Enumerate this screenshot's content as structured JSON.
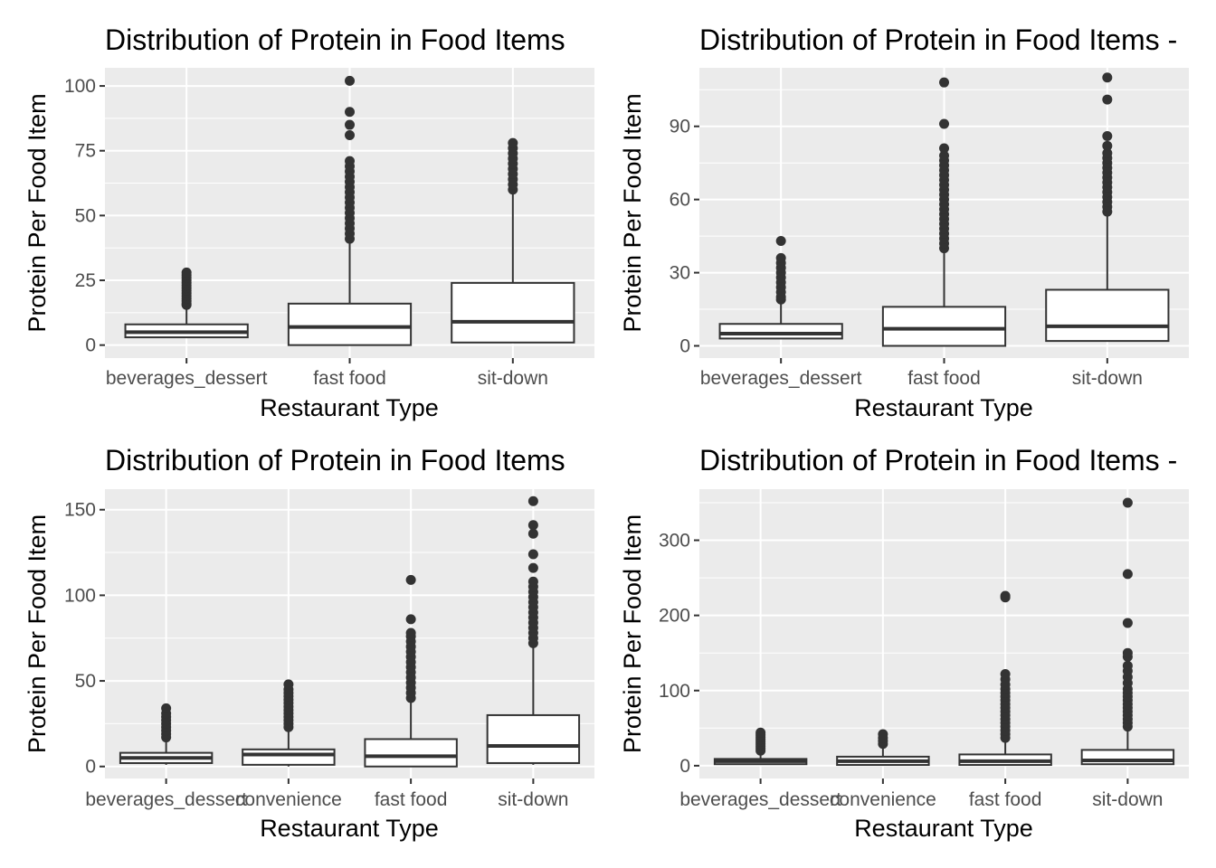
{
  "chart_data": [
    {
      "type": "box",
      "title": "Distribution of Protein in Food Items",
      "xlabel": "Restaurant Type",
      "ylabel": "Protein Per Food Item",
      "ylim": [
        -5,
        107
      ],
      "yticks": [
        0,
        25,
        50,
        75,
        100
      ],
      "categories": [
        "beverages_dessert",
        "fast food",
        "sit-down"
      ],
      "boxes": [
        {
          "min": 3,
          "q1": 3,
          "median": 5,
          "q3": 8,
          "max": 15,
          "outliers": [
            15.5,
            16,
            17,
            18,
            19,
            20,
            21,
            22,
            23,
            24,
            25,
            26,
            27,
            28
          ]
        },
        {
          "min": 0,
          "q1": 0,
          "median": 7,
          "q3": 16,
          "max": 40,
          "outliers": [
            41,
            43,
            45,
            47,
            49,
            51,
            53,
            55,
            57,
            59,
            61,
            63,
            65,
            67,
            69,
            71,
            81,
            85,
            90,
            102
          ]
        },
        {
          "min": 1,
          "q1": 1,
          "median": 9,
          "q3": 24,
          "max": 59,
          "outliers": [
            60,
            62,
            64,
            66,
            68,
            70,
            72,
            74,
            76,
            78
          ]
        }
      ]
    },
    {
      "type": "box",
      "title": "Distribution of Protein in Food Items -",
      "xlabel": "Restaurant Type",
      "ylabel": "Protein Per Food Item",
      "ylim": [
        -5,
        114
      ],
      "yticks": [
        0,
        30,
        60,
        90
      ],
      "categories": [
        "beverages_dessert",
        "fast food",
        "sit-down"
      ],
      "boxes": [
        {
          "min": 3,
          "q1": 3,
          "median": 5,
          "q3": 9,
          "max": 18,
          "outliers": [
            19,
            20,
            22,
            24,
            26,
            28,
            30,
            32,
            34,
            36,
            43
          ]
        },
        {
          "min": 0,
          "q1": 0,
          "median": 7,
          "q3": 16,
          "max": 39,
          "outliers": [
            40,
            42,
            44,
            46,
            48,
            50,
            52,
            54,
            56,
            58,
            60,
            62,
            64,
            66,
            68,
            70,
            72,
            74,
            76,
            78,
            81,
            91,
            108
          ]
        },
        {
          "min": 2,
          "q1": 2,
          "median": 8,
          "q3": 23,
          "max": 54,
          "outliers": [
            55,
            57,
            59,
            61,
            63,
            65,
            67,
            69,
            71,
            73,
            75,
            77,
            79,
            82,
            86,
            101,
            110
          ]
        }
      ]
    },
    {
      "type": "box",
      "title": "Distribution of Protein in Food Items",
      "xlabel": "Restaurant Type",
      "ylabel": "Protein Per Food Item",
      "ylim": [
        -7,
        162
      ],
      "yticks": [
        0,
        50,
        100,
        150
      ],
      "categories": [
        "beverages_dessert",
        "convenience",
        "fast food",
        "sit-down"
      ],
      "boxes": [
        {
          "min": 1,
          "q1": 2,
          "median": 5,
          "q3": 8,
          "max": 16,
          "outliers": [
            17,
            19,
            21,
            23,
            25,
            27,
            29,
            31,
            34
          ]
        },
        {
          "min": 0,
          "q1": 1,
          "median": 7,
          "q3": 10,
          "max": 22,
          "outliers": [
            23,
            25,
            27,
            29,
            31,
            33,
            35,
            37,
            39,
            41,
            43,
            45,
            48
          ]
        },
        {
          "min": 0,
          "q1": 0,
          "median": 6,
          "q3": 16,
          "max": 39,
          "outliers": [
            40,
            43,
            46,
            49,
            52,
            55,
            58,
            61,
            64,
            67,
            70,
            73,
            76,
            78,
            86,
            109
          ]
        },
        {
          "min": 1,
          "q1": 2,
          "median": 12,
          "q3": 30,
          "max": 71,
          "outliers": [
            72,
            75,
            78,
            81,
            84,
            87,
            90,
            93,
            96,
            99,
            102,
            105,
            108,
            116,
            124,
            136,
            141,
            155
          ]
        }
      ]
    },
    {
      "type": "box",
      "title": "Distribution of Protein in Food Items -",
      "xlabel": "Restaurant Type",
      "ylabel": "Protein Per Food Item",
      "ylim": [
        -17,
        368
      ],
      "yticks": [
        0,
        100,
        200,
        300
      ],
      "categories": [
        "beverages_dessert",
        "convenience",
        "fast food",
        "sit-down"
      ],
      "boxes": [
        {
          "min": 2,
          "q1": 2,
          "median": 6,
          "q3": 9,
          "max": 19,
          "outliers": [
            20,
            23,
            26,
            29,
            32,
            35,
            38,
            41,
            44
          ]
        },
        {
          "min": 0,
          "q1": 1,
          "median": 6,
          "q3": 12,
          "max": 26,
          "outliers": [
            29,
            33,
            37,
            42
          ]
        },
        {
          "min": 0,
          "q1": 1,
          "median": 6,
          "q3": 15,
          "max": 35,
          "outliers": [
            37,
            42,
            47,
            52,
            57,
            62,
            67,
            72,
            77,
            82,
            87,
            92,
            97,
            102,
            108,
            115,
            122,
            224,
            226
          ]
        },
        {
          "min": 1,
          "q1": 2,
          "median": 7,
          "q3": 21,
          "max": 50,
          "outliers": [
            52,
            57,
            62,
            67,
            72,
            77,
            82,
            87,
            92,
            97,
            102,
            110,
            118,
            126,
            133,
            145,
            150,
            190,
            255,
            350
          ]
        }
      ]
    }
  ]
}
